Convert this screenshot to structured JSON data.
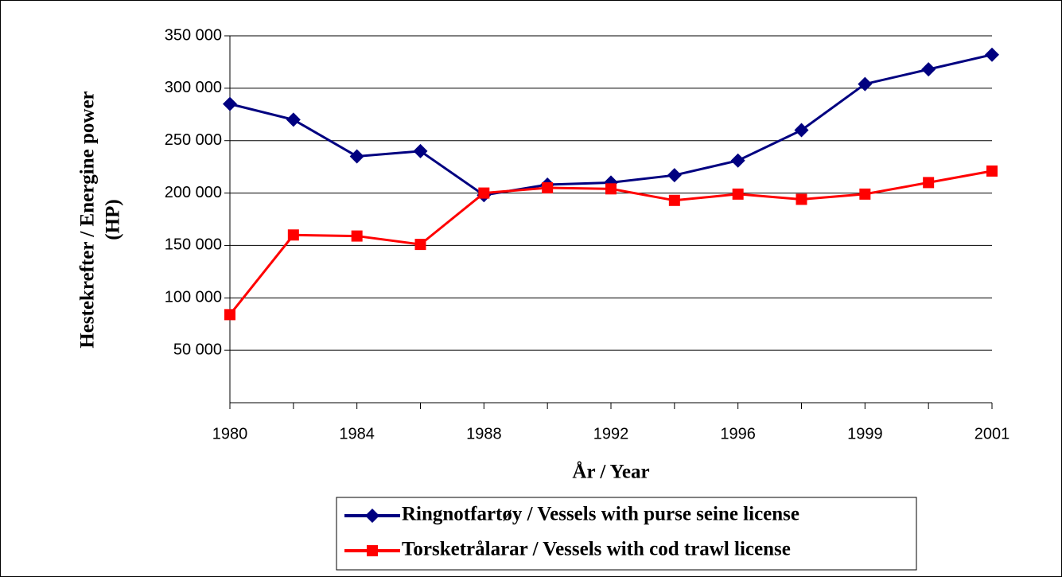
{
  "chart_data": {
    "type": "line",
    "x_label": "År / Year",
    "y_label": [
      "Hestekrefter / Energine power",
      "(HP)"
    ],
    "categories": [
      "1980",
      null,
      "1984",
      null,
      "1988",
      null,
      "1992",
      null,
      "1996",
      null,
      "1999",
      null,
      "2001"
    ],
    "series": [
      {
        "name": "Ringnotfartøy / Vessels with purse seine license",
        "color": "#000080",
        "marker": "diamond",
        "values": [
          285000,
          270000,
          235000,
          240000,
          198000,
          208000,
          210000,
          217000,
          231000,
          260000,
          304000,
          318000,
          332000
        ]
      },
      {
        "name": "Torsketrålarar / Vessels with cod trawl license",
        "color": "#ff0000",
        "marker": "square",
        "values": [
          84000,
          160000,
          159000,
          151000,
          200000,
          205000,
          204000,
          193000,
          199000,
          194000,
          199000,
          210000,
          221000
        ]
      }
    ],
    "ylim": [
      0,
      350000
    ],
    "yticks": [
      {
        "value": 50000,
        "label": "50 000"
      },
      {
        "value": 100000,
        "label": "100 000"
      },
      {
        "value": 150000,
        "label": "150 000"
      },
      {
        "value": 200000,
        "label": "200 000"
      },
      {
        "value": 250000,
        "label": "250 000"
      },
      {
        "value": 300000,
        "label": "300 000"
      },
      {
        "value": 350000,
        "label": "350 000"
      }
    ],
    "grid": true
  }
}
